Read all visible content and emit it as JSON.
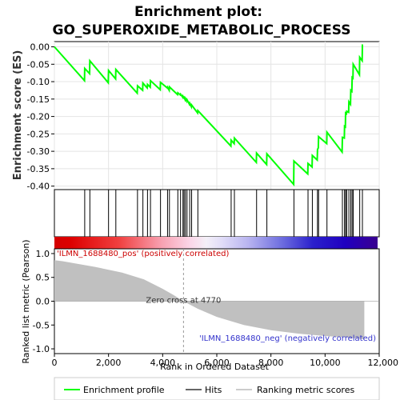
{
  "chart_data": {
    "type": "line",
    "title_line1": "Enrichment plot:",
    "title_line2": "GO_SUPEROXIDE_METABOLIC_PROCESS",
    "ylabel_top": "Enrichment score (ES)",
    "ylabel_bottom": "Ranked list metric (Pearson)",
    "xlabel": "Rank in Ordered Dataset",
    "xlim": [
      0,
      12000
    ],
    "ylim_top": [
      -0.41,
      0.015
    ],
    "ylim_bottom": [
      -1.1,
      1.1
    ],
    "x_ticks": [
      0,
      2000,
      4000,
      6000,
      8000,
      10000,
      12000
    ],
    "x_tick_labels": [
      "0",
      "2,000",
      "4,000",
      "6,000",
      "8,000",
      "10,000",
      "12,000"
    ],
    "y_ticks_top": [
      0.0,
      -0.05,
      -0.1,
      -0.15,
      -0.2,
      -0.25,
      -0.3,
      -0.35,
      -0.4
    ],
    "y_tick_labels_top": [
      "0.00",
      "-0.05",
      "-0.10",
      "-0.15",
      "-0.20",
      "-0.25",
      "-0.30",
      "-0.35",
      "-0.40"
    ],
    "y_ticks_bottom": [
      1.0,
      0.5,
      0.0,
      -0.5,
      -1.0
    ],
    "y_tick_labels_bottom": [
      "1.0",
      "0.5",
      "0.0",
      "-0.5",
      "-1.0"
    ],
    "pos_label": "'ILMN_1688480_pos' (positively correlated)",
    "neg_label": "'ILMN_1688480_neg' (negatively correlated)",
    "zero_cross_label": "Zero cross at 4770",
    "zero_cross": 4770,
    "n_genes": 11450,
    "hits": [
      1120,
      1310,
      2000,
      2270,
      3070,
      3270,
      3440,
      3550,
      3920,
      4180,
      4250,
      4560,
      4660,
      4750,
      4790,
      4840,
      4900,
      5000,
      5070,
      5300,
      6530,
      6650,
      7470,
      7850,
      8850,
      9370,
      9530,
      9720,
      9760,
      10070,
      10640,
      10720,
      10760,
      10800,
      10880,
      10950,
      11000,
      11040,
      11280,
      11380
    ],
    "es_points": [
      [
        0,
        0.0
      ],
      [
        1110,
        -0.097
      ],
      [
        1120,
        -0.062
      ],
      [
        1300,
        -0.077
      ],
      [
        1310,
        -0.04
      ],
      [
        1990,
        -0.103
      ],
      [
        2000,
        -0.068
      ],
      [
        2260,
        -0.092
      ],
      [
        2270,
        -0.065
      ],
      [
        3060,
        -0.133
      ],
      [
        3070,
        -0.112
      ],
      [
        3260,
        -0.125
      ],
      [
        3270,
        -0.104
      ],
      [
        3430,
        -0.118
      ],
      [
        3440,
        -0.108
      ],
      [
        3540,
        -0.116
      ],
      [
        3550,
        -0.097
      ],
      [
        3910,
        -0.123
      ],
      [
        3920,
        -0.102
      ],
      [
        4170,
        -0.118
      ],
      [
        4180,
        -0.116
      ],
      [
        4240,
        -0.125
      ],
      [
        4250,
        -0.115
      ],
      [
        4550,
        -0.137
      ],
      [
        4560,
        -0.132
      ],
      [
        4650,
        -0.138
      ],
      [
        4660,
        -0.136
      ],
      [
        4740,
        -0.145
      ],
      [
        4750,
        -0.142
      ],
      [
        4780,
        -0.146
      ],
      [
        4790,
        -0.145
      ],
      [
        4830,
        -0.152
      ],
      [
        4840,
        -0.148
      ],
      [
        4890,
        -0.156
      ],
      [
        4900,
        -0.152
      ],
      [
        4990,
        -0.165
      ],
      [
        5000,
        -0.162
      ],
      [
        5060,
        -0.172
      ],
      [
        5070,
        -0.167
      ],
      [
        5290,
        -0.19
      ],
      [
        5300,
        -0.183
      ],
      [
        6520,
        -0.285
      ],
      [
        6530,
        -0.268
      ],
      [
        6640,
        -0.278
      ],
      [
        6650,
        -0.262
      ],
      [
        7460,
        -0.332
      ],
      [
        7470,
        -0.305
      ],
      [
        7840,
        -0.338
      ],
      [
        7850,
        -0.307
      ],
      [
        8840,
        -0.395
      ],
      [
        8850,
        -0.328
      ],
      [
        9360,
        -0.365
      ],
      [
        9370,
        -0.335
      ],
      [
        9520,
        -0.345
      ],
      [
        9530,
        -0.312
      ],
      [
        9710,
        -0.325
      ],
      [
        9720,
        -0.295
      ],
      [
        9750,
        -0.29
      ],
      [
        9760,
        -0.258
      ],
      [
        10060,
        -0.278
      ],
      [
        10070,
        -0.245
      ],
      [
        10630,
        -0.302
      ],
      [
        10640,
        -0.26
      ],
      [
        10710,
        -0.262
      ],
      [
        10720,
        -0.228
      ],
      [
        10750,
        -0.23
      ],
      [
        10760,
        -0.19
      ],
      [
        10790,
        -0.192
      ],
      [
        10800,
        -0.185
      ],
      [
        10870,
        -0.188
      ],
      [
        10880,
        -0.158
      ],
      [
        10940,
        -0.165
      ],
      [
        10950,
        -0.125
      ],
      [
        10990,
        -0.128
      ],
      [
        11000,
        -0.088
      ],
      [
        11030,
        -0.09
      ],
      [
        11040,
        -0.05
      ],
      [
        11270,
        -0.08
      ],
      [
        11280,
        -0.03
      ],
      [
        11370,
        -0.04
      ],
      [
        11380,
        0.005
      ],
      [
        11400,
        0.005
      ]
    ],
    "metric_curve": [
      [
        0,
        0.86
      ],
      [
        300,
        0.84
      ],
      [
        700,
        0.8
      ],
      [
        1500,
        0.72
      ],
      [
        2500,
        0.6
      ],
      [
        3300,
        0.46
      ],
      [
        4000,
        0.26
      ],
      [
        4400,
        0.13
      ],
      [
        4770,
        0.0
      ],
      [
        5300,
        -0.16
      ],
      [
        6000,
        -0.33
      ],
      [
        7000,
        -0.5
      ],
      [
        8000,
        -0.61
      ],
      [
        9000,
        -0.68
      ],
      [
        10000,
        -0.73
      ],
      [
        10800,
        -0.76
      ],
      [
        11450,
        -0.8
      ]
    ],
    "legend": [
      "Enrichment profile",
      "Hits",
      "Ranking metric scores"
    ],
    "colors": {
      "es_line": "#00ff00",
      "hit": "#000000",
      "metric_fill": "#c0c0c0",
      "zero_line": "#aaaaaa"
    }
  }
}
